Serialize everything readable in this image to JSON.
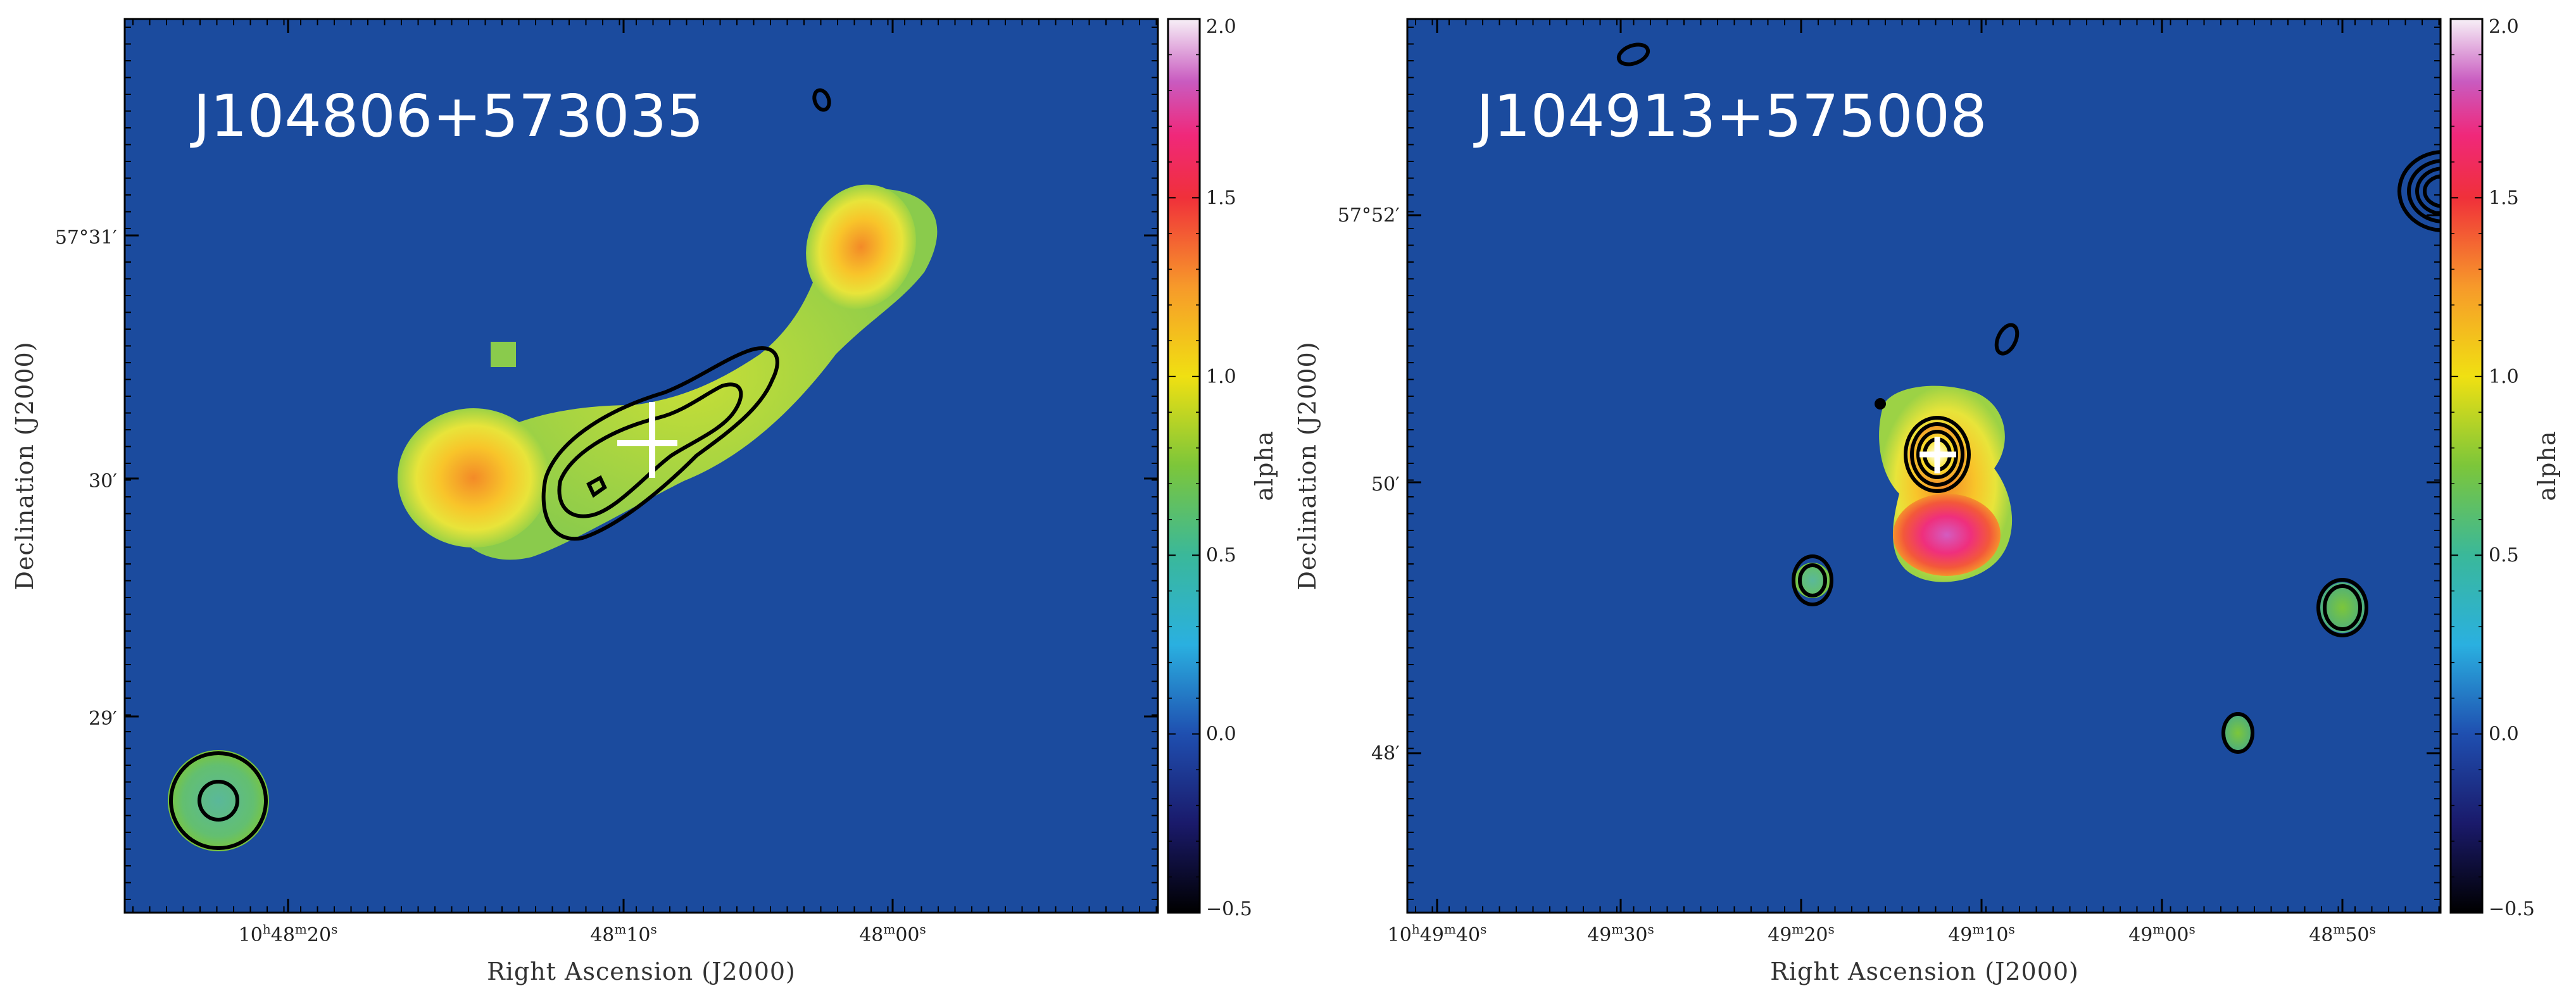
{
  "chart_data": [
    {
      "type": "heatmap",
      "title": "J104806+573035",
      "xlabel": "Right Ascension (J2000)",
      "ylabel": "Declination (J2000)",
      "x_ticks": [
        {
          "label": "10h48m20s",
          "parts": [
            "10",
            "h",
            "48",
            "m",
            "20",
            "s"
          ]
        },
        {
          "label": "48m10s",
          "parts": [
            "48",
            "m",
            "10",
            "s"
          ]
        },
        {
          "label": "48m00s",
          "parts": [
            "48",
            "m",
            "00",
            "s"
          ]
        }
      ],
      "y_ticks": [
        "57°31′",
        "30′",
        "29′"
      ],
      "colorbar": {
        "label": "alpha",
        "range": [
          -0.5,
          2.0
        ],
        "ticks": [
          "2.0",
          "1.5",
          "1.0",
          "0.5",
          "0.0",
          "−0.5"
        ]
      },
      "background_color": "#1b4b9e",
      "marker": "white cross at radio core"
    },
    {
      "type": "heatmap",
      "title": "J104913+575008",
      "xlabel": "Right Ascension (J2000)",
      "ylabel": "Declination (J2000)",
      "x_ticks": [
        {
          "label": "10h49m40s",
          "parts": [
            "10",
            "h",
            "49",
            "m",
            "40",
            "s"
          ]
        },
        {
          "label": "49m30s",
          "parts": [
            "49",
            "m",
            "30",
            "s"
          ]
        },
        {
          "label": "49m20s",
          "parts": [
            "49",
            "m",
            "20",
            "s"
          ]
        },
        {
          "label": "49m10s",
          "parts": [
            "49",
            "m",
            "10",
            "s"
          ]
        },
        {
          "label": "49m00s",
          "parts": [
            "49",
            "m",
            "00",
            "s"
          ]
        },
        {
          "label": "48m50s",
          "parts": [
            "48",
            "m",
            "50",
            "s"
          ]
        }
      ],
      "y_ticks": [
        "57°52′",
        "50′",
        "48′"
      ],
      "colorbar": {
        "label": "alpha",
        "range": [
          -0.5,
          2.0
        ],
        "ticks": [
          "2.0",
          "1.5",
          "1.0",
          "0.5",
          "0.0",
          "−0.5"
        ]
      },
      "background_color": "#1b4b9e",
      "marker": "white cross at radio core"
    }
  ]
}
